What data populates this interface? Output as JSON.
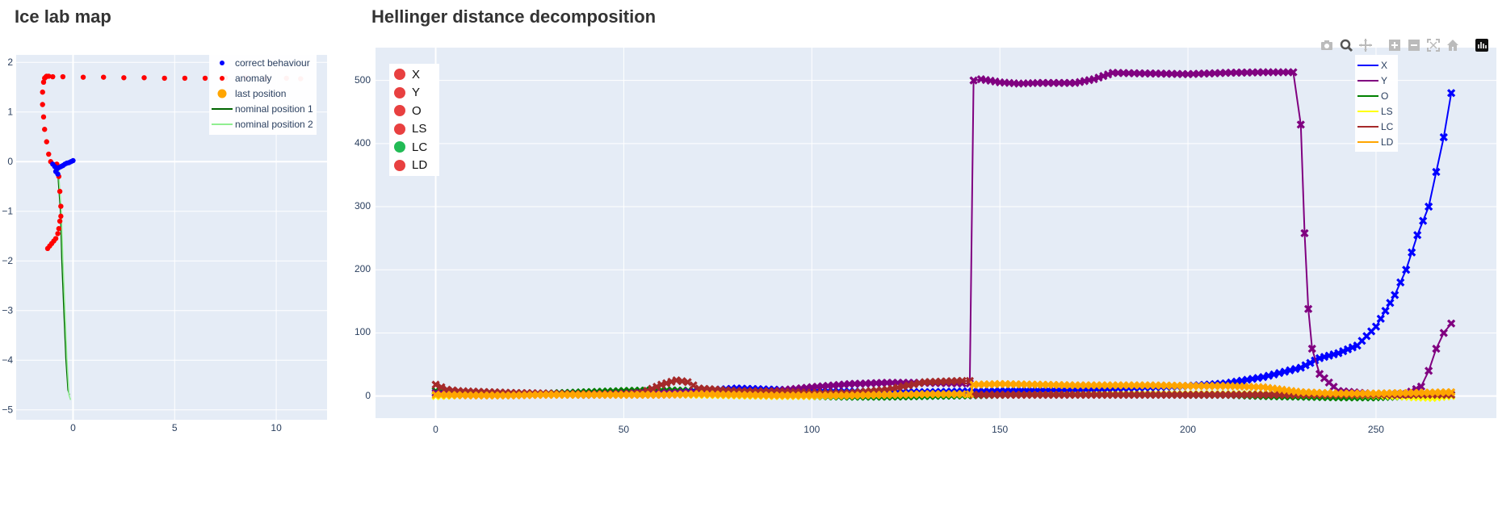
{
  "map": {
    "title": "Ice lab map",
    "legend": [
      {
        "label": "correct behaviour",
        "symbol": "dot",
        "color": "#0000ff"
      },
      {
        "label": "anomaly",
        "symbol": "dot",
        "color": "#ff0000"
      },
      {
        "label": "last position",
        "symbol": "bigdot",
        "color": "#ffa500"
      },
      {
        "label": "nominal position 1",
        "symbol": "line",
        "color": "#006400"
      },
      {
        "label": "nominal position 2",
        "symbol": "line",
        "color": "#90ee90"
      }
    ]
  },
  "hellinger": {
    "title": "Hellinger distance decomposition",
    "legend": [
      {
        "label": "X",
        "color": "#0000ff"
      },
      {
        "label": "Y",
        "color": "#800080"
      },
      {
        "label": "O",
        "color": "#008000"
      },
      {
        "label": "LS",
        "color": "#ffff00"
      },
      {
        "label": "LC",
        "color": "#a52a2a"
      },
      {
        "label": "LD",
        "color": "#ffa500"
      }
    ],
    "status": [
      {
        "label": "X",
        "color": "#e84040"
      },
      {
        "label": "Y",
        "color": "#e84040"
      },
      {
        "label": "O",
        "color": "#e84040"
      },
      {
        "label": "LS",
        "color": "#e84040"
      },
      {
        "label": "LC",
        "color": "#22bb55"
      },
      {
        "label": "LD",
        "color": "#e84040"
      }
    ]
  },
  "modebar": [
    "camera-icon",
    "zoom-icon",
    "pan-icon",
    "zoom-in-icon",
    "zoom-out-icon",
    "autoscale-icon",
    "reset-axes-icon",
    "plotly-logo-icon"
  ],
  "chart_data": [
    {
      "type": "scatter",
      "title": "Ice lab map",
      "xlim": [
        -2.8,
        12.5
      ],
      "ylim": [
        -5.2,
        2.15
      ],
      "xticks": [
        0,
        5,
        10
      ],
      "yticks": [
        2,
        1,
        0,
        -1,
        -2,
        -3,
        -4,
        -5
      ],
      "xtick_labels": [
        "0",
        "5",
        "10"
      ],
      "ytick_labels": [
        "2",
        "1",
        "0",
        "−1",
        "−2",
        "−3",
        "−4",
        "−5"
      ],
      "grid": true,
      "legend_position": "top-right",
      "series": [
        {
          "name": "nominal position 1",
          "mode": "line",
          "color": "#006400",
          "x": [
            -0.75,
            -0.72,
            -0.62,
            -0.55,
            -0.45,
            -0.35,
            -0.25,
            -0.18
          ],
          "y": [
            -0.05,
            -0.4,
            -1.0,
            -2.0,
            -3.0,
            -4.0,
            -4.6,
            -4.7
          ]
        },
        {
          "name": "nominal position 2",
          "mode": "line",
          "color": "#90ee90",
          "x": [
            -0.72,
            -0.68,
            -0.58,
            -0.5,
            -0.4,
            -0.3,
            -0.2,
            -0.12
          ],
          "y": [
            -0.05,
            -0.4,
            -1.0,
            -2.0,
            -3.0,
            -4.0,
            -4.7,
            -4.8
          ]
        },
        {
          "name": "anomaly",
          "mode": "markers",
          "color": "#ff0000",
          "x": [
            -1.1,
            -1.2,
            -1.3,
            -1.4,
            -1.45,
            -1.5,
            -1.5,
            -1.45,
            -1.4,
            -1.35,
            -1.3,
            -1.2,
            -1.0,
            -0.5,
            0.5,
            1.5,
            2.5,
            3.5,
            4.5,
            5.5,
            6.5,
            7.5,
            8.5,
            9.5,
            10.5,
            11.2,
            -0.8,
            -0.7,
            -0.65,
            -0.6,
            -0.6,
            -0.65,
            -0.7,
            -0.75,
            -0.85,
            -0.95,
            -1.05,
            -1.15,
            -1.25
          ],
          "y": [
            0.0,
            0.15,
            0.4,
            0.65,
            0.9,
            1.15,
            1.4,
            1.6,
            1.68,
            1.7,
            1.72,
            1.72,
            1.71,
            1.71,
            1.7,
            1.7,
            1.69,
            1.69,
            1.68,
            1.68,
            1.68,
            1.69,
            1.69,
            1.68,
            1.68,
            1.67,
            -0.05,
            -0.3,
            -0.6,
            -0.9,
            -1.1,
            -1.2,
            -1.35,
            -1.45,
            -1.55,
            -1.6,
            -1.65,
            -1.7,
            -1.75
          ]
        },
        {
          "name": "correct behaviour",
          "mode": "markers",
          "color": "#0000ff",
          "x": [
            -1.0,
            -0.9,
            -0.8,
            -0.7,
            -0.6,
            -0.5,
            -0.4,
            -0.3,
            -0.2,
            -0.1,
            0.0,
            -0.85,
            -0.75
          ],
          "y": [
            -0.05,
            -0.1,
            -0.15,
            -0.12,
            -0.1,
            -0.08,
            -0.05,
            -0.03,
            -0.02,
            0.0,
            0.02,
            -0.2,
            -0.25
          ]
        },
        {
          "name": "last position",
          "mode": "markers",
          "color": "#ffa500",
          "x": [],
          "y": []
        }
      ]
    },
    {
      "type": "line",
      "title": "Hellinger distance decomposition",
      "xlim": [
        -16,
        282
      ],
      "ylim": [
        -35,
        552
      ],
      "xticks": [
        0,
        50,
        100,
        150,
        200,
        250
      ],
      "yticks": [
        0,
        100,
        200,
        300,
        400,
        500
      ],
      "grid": true,
      "legend_position": "top-right",
      "series": [
        {
          "name": "X",
          "color": "#0000ff",
          "x": [
            0,
            10,
            20,
            30,
            40,
            50,
            60,
            70,
            80,
            90,
            100,
            110,
            120,
            130,
            140,
            150,
            160,
            170,
            180,
            190,
            200,
            210,
            220,
            230,
            235,
            240,
            245,
            250,
            255,
            258,
            261,
            264,
            266,
            268,
            270
          ],
          "y": [
            5,
            4,
            3,
            3,
            2,
            3,
            3,
            8,
            12,
            10,
            8,
            7,
            6,
            6,
            7,
            8,
            9,
            10,
            12,
            14,
            16,
            20,
            30,
            45,
            60,
            68,
            80,
            110,
            160,
            200,
            255,
            300,
            355,
            410,
            480
          ]
        },
        {
          "name": "Y",
          "color": "#800080",
          "x": [
            0,
            10,
            20,
            30,
            40,
            50,
            60,
            70,
            80,
            90,
            100,
            110,
            120,
            130,
            140,
            142,
            143,
            145,
            150,
            155,
            160,
            170,
            175,
            180,
            190,
            200,
            210,
            220,
            228,
            230,
            231,
            232,
            233,
            235,
            240,
            250,
            258,
            262,
            264,
            266,
            268,
            270
          ],
          "y": [
            5,
            4,
            4,
            3,
            3,
            4,
            5,
            6,
            6,
            8,
            14,
            19,
            21,
            21,
            20,
            20,
            500,
            502,
            497,
            495,
            496,
            496,
            502,
            512,
            511,
            510,
            512,
            513,
            513,
            430,
            258,
            138,
            75,
            35,
            8,
            3,
            3,
            15,
            40,
            75,
            100,
            115
          ]
        },
        {
          "name": "O",
          "color": "#008000",
          "x": [
            0,
            10,
            20,
            30,
            40,
            50,
            60,
            70,
            80,
            90,
            100,
            110,
            120,
            130,
            140,
            150,
            160,
            170,
            180,
            190,
            200,
            210,
            220,
            230,
            240,
            250,
            255,
            260,
            265,
            270
          ],
          "y": [
            8,
            3,
            2,
            4,
            6,
            8,
            9,
            8,
            6,
            3,
            0,
            -1,
            -1,
            0,
            1,
            2,
            3,
            3,
            3,
            3,
            2,
            2,
            0,
            -1,
            -2,
            -2,
            -1,
            0,
            1,
            2
          ]
        },
        {
          "name": "LS",
          "color": "#ffff00",
          "x": [
            0,
            10,
            20,
            30,
            40,
            50,
            60,
            70,
            80,
            90,
            100,
            110,
            120,
            130,
            140,
            150,
            160,
            170,
            180,
            190,
            200,
            210,
            220,
            230,
            240,
            250,
            255,
            260,
            265,
            270
          ],
          "y": [
            0,
            2,
            3,
            3,
            2,
            3,
            3,
            2,
            1,
            0,
            0,
            1,
            2,
            3,
            3,
            3,
            3,
            3,
            3,
            3,
            3,
            3,
            3,
            2,
            2,
            1,
            0,
            -2,
            -3,
            0
          ]
        },
        {
          "name": "LC",
          "color": "#a52a2a",
          "x": [
            0,
            3,
            6,
            10,
            20,
            30,
            40,
            50,
            55,
            60,
            64,
            67,
            70,
            80,
            90,
            100,
            110,
            120,
            130,
            140,
            142,
            143,
            150,
            160,
            170,
            180,
            190,
            200,
            210,
            220,
            230,
            240,
            250,
            260,
            265,
            270
          ],
          "y": [
            18,
            10,
            8,
            7,
            5,
            4,
            3,
            3,
            5,
            18,
            25,
            22,
            12,
            8,
            7,
            5,
            5,
            10,
            22,
            24,
            24,
            2,
            2,
            2,
            2,
            2,
            2,
            2,
            2,
            2,
            2,
            2,
            2,
            2,
            2,
            2
          ]
        },
        {
          "name": "LD",
          "color": "#ffa500",
          "x": [
            0,
            10,
            20,
            30,
            40,
            50,
            60,
            70,
            80,
            90,
            100,
            110,
            120,
            130,
            140,
            142,
            143,
            150,
            160,
            170,
            180,
            190,
            200,
            210,
            215,
            220,
            225,
            230,
            240,
            250,
            260,
            270
          ],
          "y": [
            2,
            1,
            1,
            2,
            2,
            2,
            2,
            3,
            2,
            1,
            1,
            1,
            2,
            3,
            3,
            3,
            18,
            19,
            18,
            17,
            17,
            17,
            16,
            16,
            15,
            14,
            10,
            6,
            4,
            4,
            5,
            6
          ]
        }
      ]
    }
  ]
}
